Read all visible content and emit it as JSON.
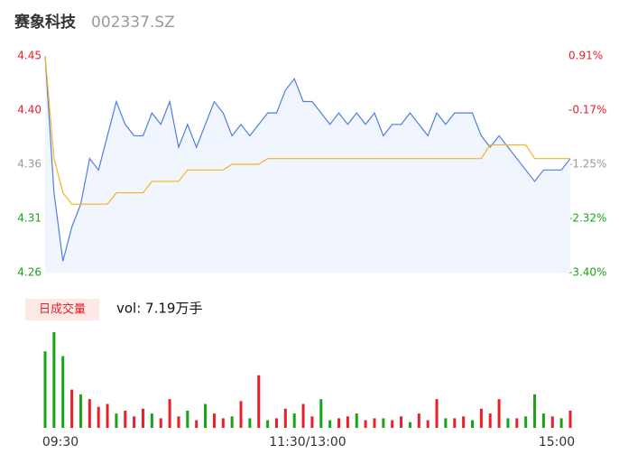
{
  "chart_data": [
    {
      "type": "line",
      "title": "赛象科技",
      "subtitle": "002337.SZ",
      "xlim": [
        0,
        59
      ],
      "ylim": [
        4.26,
        4.45
      ],
      "yticks": [
        {
          "value": 4.26,
          "label": "4.26"
        },
        {
          "value": 4.3075,
          "label": "4.31"
        },
        {
          "value": 4.355,
          "label": "4.36"
        },
        {
          "value": 4.4025,
          "label": "4.40"
        },
        {
          "value": 4.45,
          "label": "4.45"
        }
      ],
      "y2lim": [
        -3.4,
        0.91
      ],
      "y2ticks": [
        {
          "value": -3.4,
          "label": "-3.40%"
        },
        {
          "value": -2.3225,
          "label": "-2.32%"
        },
        {
          "value": -1.245,
          "label": "-1.25%"
        },
        {
          "value": -0.1675,
          "label": "-0.17%"
        },
        {
          "value": 0.91,
          "label": "0.91%"
        }
      ],
      "tick_colors": [
        "#19a319",
        "#19a319",
        "#999999",
        "#e8202a",
        "#e8202a"
      ],
      "series": [
        {
          "name": "price",
          "color": "#4e7ee0",
          "values": [
            4.45,
            4.33,
            4.27,
            4.3,
            4.32,
            4.36,
            4.35,
            4.38,
            4.41,
            4.39,
            4.38,
            4.38,
            4.4,
            4.39,
            4.41,
            4.37,
            4.39,
            4.37,
            4.39,
            4.41,
            4.4,
            4.38,
            4.39,
            4.38,
            4.39,
            4.4,
            4.4,
            4.42,
            4.43,
            4.41,
            4.41,
            4.4,
            4.39,
            4.4,
            4.39,
            4.4,
            4.39,
            4.4,
            4.38,
            4.39,
            4.39,
            4.4,
            4.39,
            4.38,
            4.4,
            4.39,
            4.4,
            4.4,
            4.4,
            4.38,
            4.37,
            4.38,
            4.37,
            4.36,
            4.35,
            4.34,
            4.35,
            4.35,
            4.35,
            4.36
          ]
        },
        {
          "name": "average",
          "color": "#f5b324",
          "values": [
            4.45,
            4.36,
            4.33,
            4.32,
            4.32,
            4.32,
            4.32,
            4.32,
            4.33,
            4.33,
            4.33,
            4.33,
            4.34,
            4.34,
            4.34,
            4.34,
            4.35,
            4.35,
            4.35,
            4.35,
            4.35,
            4.355,
            4.355,
            4.355,
            4.355,
            4.36,
            4.36,
            4.36,
            4.36,
            4.36,
            4.36,
            4.36,
            4.36,
            4.36,
            4.36,
            4.36,
            4.36,
            4.36,
            4.36,
            4.36,
            4.36,
            4.36,
            4.36,
            4.36,
            4.36,
            4.36,
            4.36,
            4.36,
            4.36,
            4.36,
            4.372,
            4.372,
            4.372,
            4.372,
            4.372,
            4.36,
            4.36,
            4.36,
            4.36,
            4.36
          ]
        }
      ]
    },
    {
      "type": "bar",
      "title": "日成交量",
      "annotation": "vol: 7.19万手",
      "xlim": [
        0,
        59
      ],
      "ylim": [
        0,
        100
      ],
      "xticks": [
        {
          "value": 0,
          "label": "09:30"
        },
        {
          "value": 29.5,
          "label": "11:30/13:00"
        },
        {
          "value": 59,
          "label": "15:00"
        }
      ],
      "values": [
        80,
        100,
        75,
        40,
        35,
        30,
        22,
        25,
        15,
        18,
        12,
        20,
        15,
        10,
        30,
        12,
        18,
        8,
        25,
        15,
        10,
        12,
        28,
        10,
        55,
        8,
        10,
        20,
        15,
        25,
        12,
        30,
        8,
        10,
        12,
        15,
        8,
        10,
        10,
        8,
        12,
        6,
        15,
        8,
        30,
        10,
        10,
        12,
        8,
        20,
        15,
        30,
        10,
        10,
        12,
        35,
        15,
        12,
        10,
        18
      ],
      "colors": [
        "#19a319",
        "#19a319",
        "#19a319",
        "#e8202a",
        "#19a319",
        "#e8202a",
        "#e8202a",
        "#e8202a",
        "#19a319",
        "#e8202a",
        "#e8202a",
        "#e8202a",
        "#19a319",
        "#e8202a",
        "#e8202a",
        "#e8202a",
        "#19a319",
        "#e8202a",
        "#19a319",
        "#e8202a",
        "#e8202a",
        "#19a319",
        "#e8202a",
        "#19a319",
        "#e8202a",
        "#19a319",
        "#e8202a",
        "#e8202a",
        "#19a319",
        "#e8202a",
        "#e8202a",
        "#19a319",
        "#19a319",
        "#e8202a",
        "#e8202a",
        "#19a319",
        "#e8202a",
        "#e8202a",
        "#19a319",
        "#e8202a",
        "#e8202a",
        "#19a319",
        "#e8202a",
        "#e8202a",
        "#e8202a",
        "#19a319",
        "#e8202a",
        "#e8202a",
        "#19a319",
        "#e8202a",
        "#e8202a",
        "#e8202a",
        "#19a319",
        "#e8202a",
        "#19a319",
        "#19a319",
        "#19a319",
        "#e8202a",
        "#19a319",
        "#e8202a"
      ]
    }
  ]
}
